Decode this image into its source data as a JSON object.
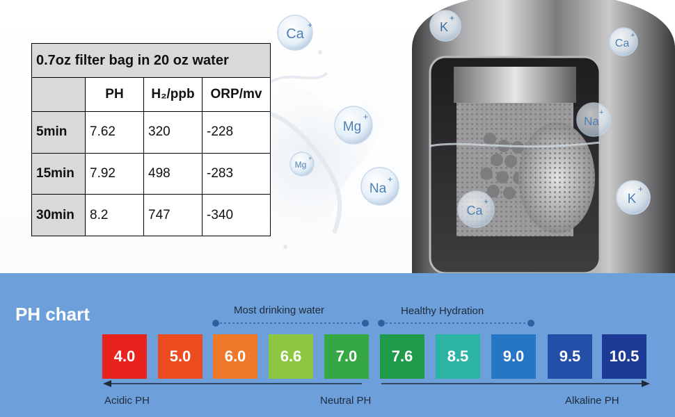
{
  "table": {
    "caption": "0.7oz filter bag in 20 oz water",
    "headers": [
      "",
      "PH",
      "H₂/ppb",
      "ORP/mv"
    ],
    "rows": [
      {
        "label": "5min",
        "ph": "7.62",
        "h2": "320",
        "orp": "-228"
      },
      {
        "label": "15min",
        "ph": "7.92",
        "h2": "498",
        "orp": "-283"
      },
      {
        "label": "30min",
        "ph": "8.2",
        "h2": "747",
        "orp": "-340"
      }
    ]
  },
  "minerals": {
    "bubbles": [
      "Ca",
      "Mg",
      "Mg",
      "Na",
      "K",
      "Ca",
      "Na",
      "Ca",
      "K"
    ]
  },
  "ph_chart": {
    "title": "PH chart",
    "ranges": [
      {
        "label": "Most drinking water"
      },
      {
        "label": "Healthy Hydration"
      }
    ],
    "values": [
      {
        "value": "4.0",
        "color": "#e8231e"
      },
      {
        "value": "5.0",
        "color": "#ec4b20"
      },
      {
        "value": "6.0",
        "color": "#f0782a"
      },
      {
        "value": "6.6",
        "color": "#8dc63f"
      },
      {
        "value": "7.0",
        "color": "#35a845"
      },
      {
        "value": "7.6",
        "color": "#1e9a4a"
      },
      {
        "value": "8.5",
        "color": "#2bb3a4"
      },
      {
        "value": "9.0",
        "color": "#2576c4"
      },
      {
        "value": "9.5",
        "color": "#244fa8"
      },
      {
        "value": "10.5",
        "color": "#1c3a96"
      }
    ],
    "axis": {
      "left": "Acidic  PH",
      "middle": "Neutral PH",
      "right": "Alkaline  PH"
    }
  }
}
